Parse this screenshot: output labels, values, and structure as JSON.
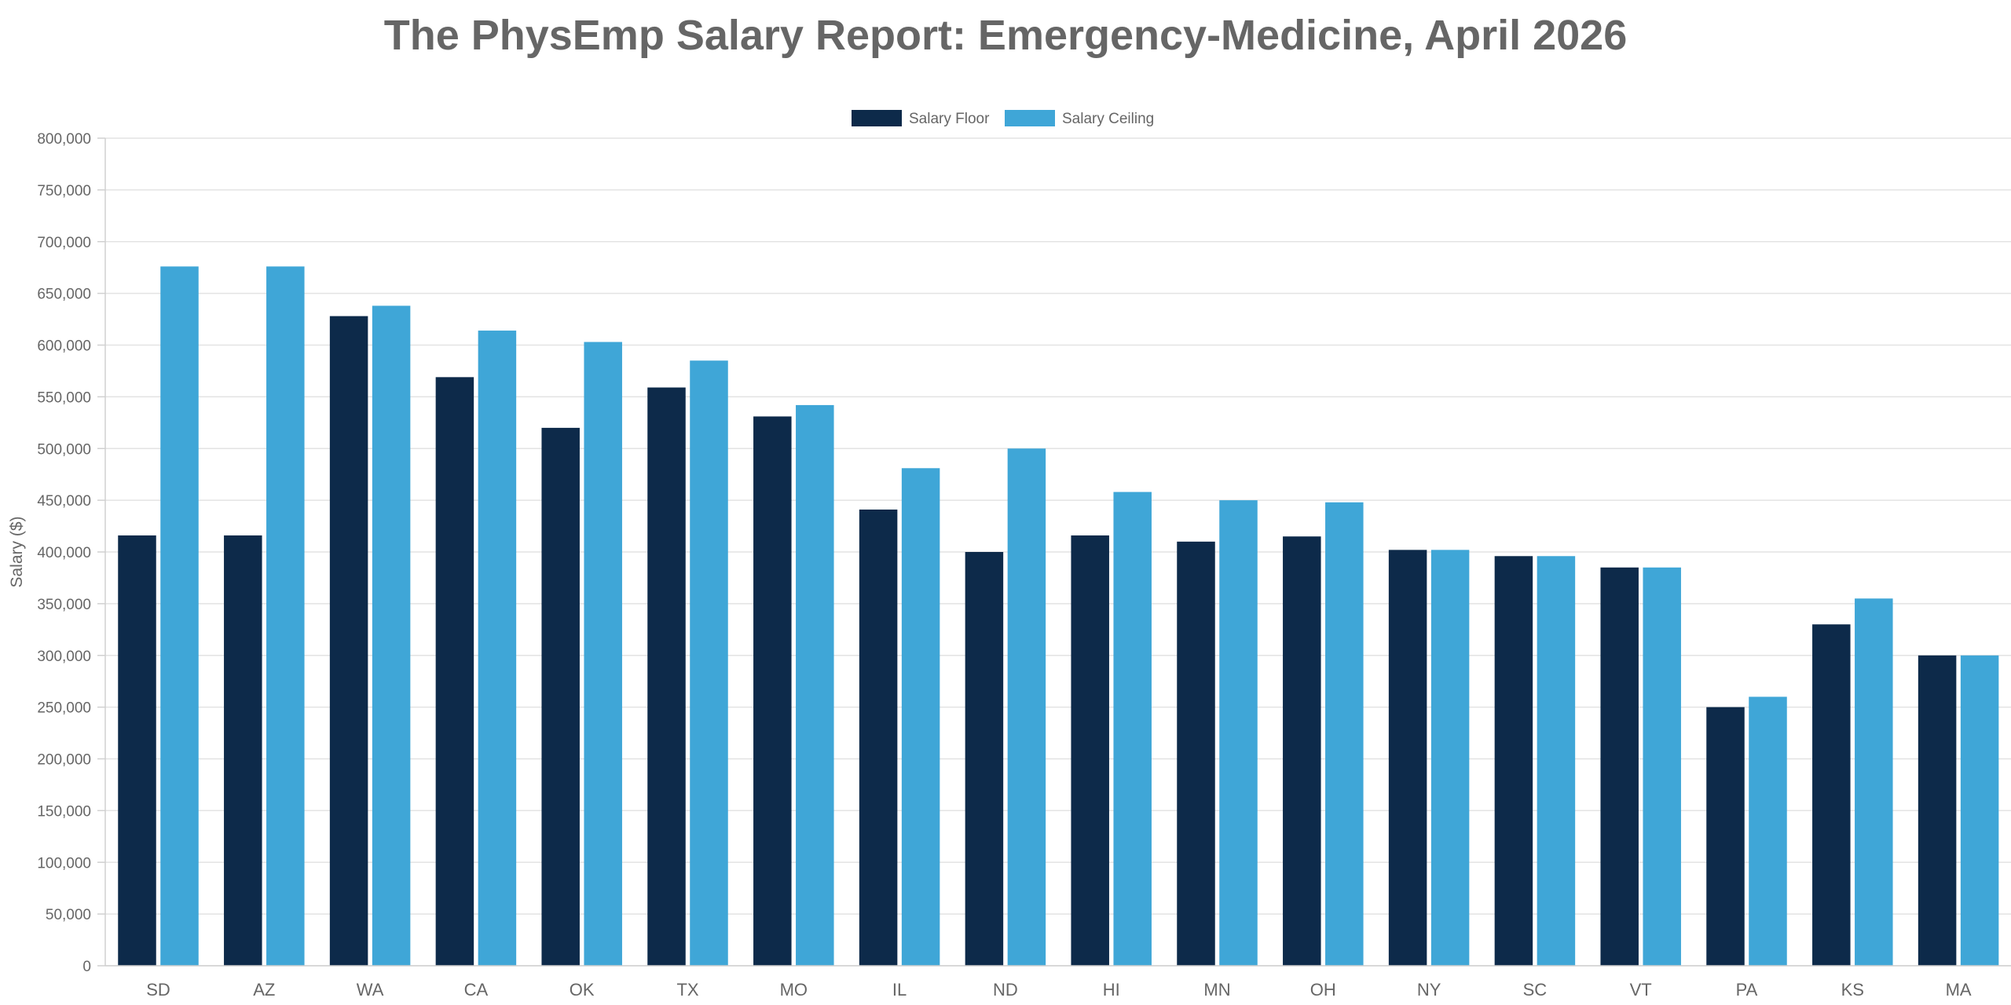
{
  "chart_data": {
    "type": "bar",
    "title": "The PhysEmp Salary Report: Emergency-Medicine, April 2026",
    "xlabel": "",
    "ylabel": "Salary ($)",
    "ylim": [
      0,
      800000
    ],
    "yticks": [
      0,
      50000,
      100000,
      150000,
      200000,
      250000,
      300000,
      350000,
      400000,
      450000,
      500000,
      550000,
      600000,
      650000,
      700000,
      750000,
      800000
    ],
    "ytick_labels": [
      "0",
      "50,000",
      "100,000",
      "150,000",
      "200,000",
      "250,000",
      "300,000",
      "350,000",
      "400,000",
      "450,000",
      "500,000",
      "550,000",
      "600,000",
      "650,000",
      "700,000",
      "750,000",
      "800,000"
    ],
    "legend_position": "top-center",
    "grid": true,
    "categories": [
      "SD",
      "AZ",
      "WA",
      "CA",
      "OK",
      "TX",
      "MO",
      "IL",
      "ND",
      "HI",
      "MN",
      "OH",
      "NY",
      "SC",
      "VT",
      "PA",
      "KS",
      "MA"
    ],
    "series": [
      {
        "name": "Salary Floor",
        "color": "#0d2a4a",
        "values": [
          416000,
          416000,
          628000,
          569000,
          520000,
          559000,
          531000,
          441000,
          400000,
          416000,
          410000,
          415000,
          402000,
          396000,
          385000,
          250000,
          330000,
          300000
        ]
      },
      {
        "name": "Salary Ceiling",
        "color": "#3fa6d7",
        "values": [
          676000,
          676000,
          638000,
          614000,
          603000,
          585000,
          542000,
          481000,
          500000,
          458000,
          450000,
          448000,
          402000,
          396000,
          385000,
          260000,
          355000,
          300000
        ]
      }
    ]
  }
}
